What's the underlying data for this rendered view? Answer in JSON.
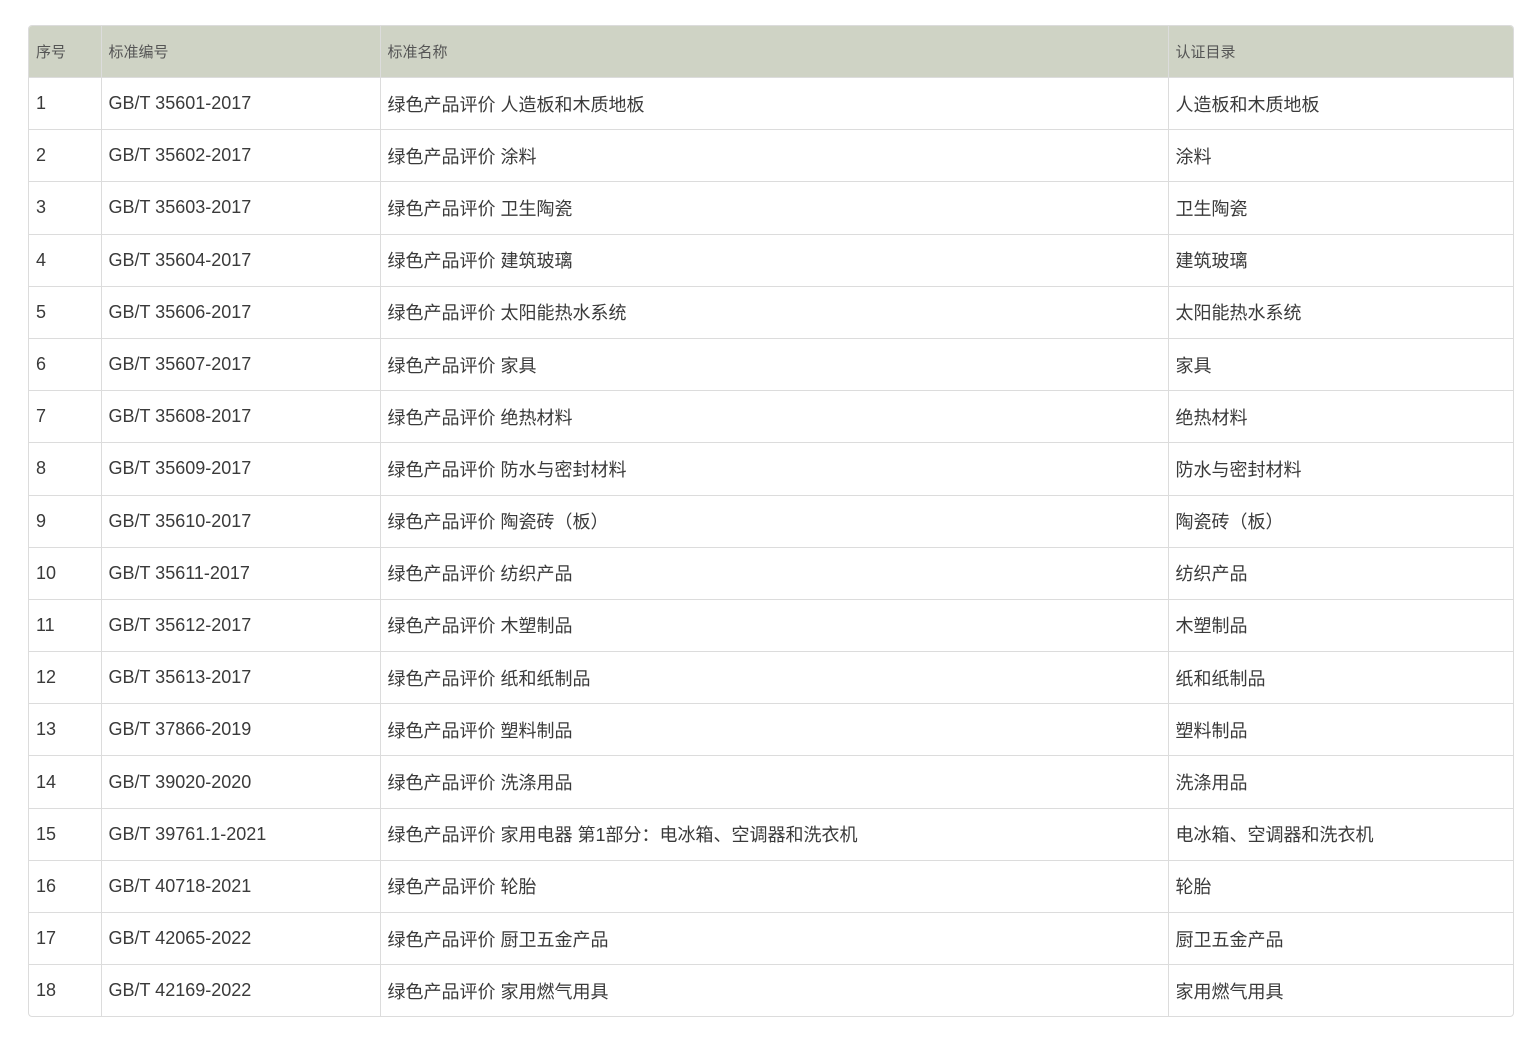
{
  "table": {
    "headers": [
      "序号",
      "标准编号",
      "标准名称",
      "认证目录"
    ],
    "rows": [
      [
        "1",
        "GB/T 35601-2017",
        "绿色产品评价 人造板和木质地板",
        "人造板和木质地板"
      ],
      [
        "2",
        "GB/T 35602-2017",
        "绿色产品评价 涂料",
        "涂料"
      ],
      [
        "3",
        "GB/T 35603-2017",
        "绿色产品评价 卫生陶瓷",
        "卫生陶瓷"
      ],
      [
        "4",
        "GB/T 35604-2017",
        "绿色产品评价 建筑玻璃",
        "建筑玻璃"
      ],
      [
        "5",
        "GB/T 35606-2017",
        "绿色产品评价 太阳能热水系统",
        "太阳能热水系统"
      ],
      [
        "6",
        "GB/T 35607-2017",
        "绿色产品评价 家具",
        "家具"
      ],
      [
        "7",
        "GB/T 35608-2017",
        "绿色产品评价 绝热材料",
        "绝热材料"
      ],
      [
        "8",
        "GB/T 35609-2017",
        "绿色产品评价 防水与密封材料",
        "防水与密封材料"
      ],
      [
        "9",
        "GB/T 35610-2017",
        "绿色产品评价 陶瓷砖（板）",
        "陶瓷砖（板）"
      ],
      [
        "10",
        "GB/T 35611-2017",
        "绿色产品评价 纺织产品",
        "纺织产品"
      ],
      [
        "11",
        "GB/T 35612-2017",
        "绿色产品评价 木塑制品",
        "木塑制品"
      ],
      [
        "12",
        "GB/T 35613-2017",
        "绿色产品评价 纸和纸制品",
        "纸和纸制品"
      ],
      [
        "13",
        "GB/T 37866-2019",
        "绿色产品评价 塑料制品",
        "塑料制品"
      ],
      [
        "14",
        "GB/T 39020-2020",
        "绿色产品评价 洗涤用品",
        "洗涤用品"
      ],
      [
        "15",
        "GB/T 39761.1-2021",
        "绿色产品评价 家用电器 第1部分：电冰箱、空调器和洗衣机",
        "电冰箱、空调器和洗衣机"
      ],
      [
        "16",
        "GB/T 40718-2021",
        "绿色产品评价 轮胎",
        "轮胎"
      ],
      [
        "17",
        "GB/T 42065-2022",
        "绿色产品评价 厨卫五金产品",
        "厨卫五金产品"
      ],
      [
        "18",
        "GB/T 42169-2022",
        "绿色产品评价 家用燃气用具",
        "家用燃气用具"
      ]
    ]
  }
}
